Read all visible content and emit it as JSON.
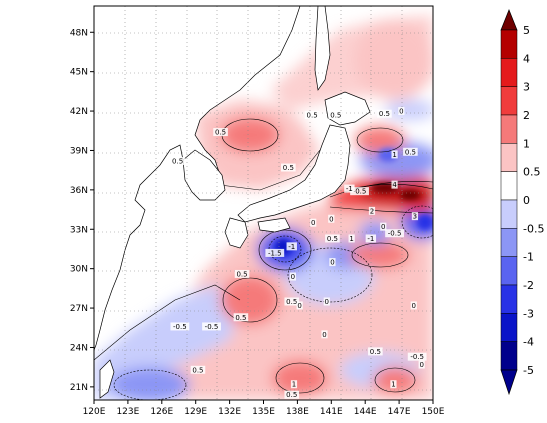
{
  "map": {
    "lon_ticks": [
      "120E",
      "123E",
      "126E",
      "129E",
      "132E",
      "135E",
      "138E",
      "141E",
      "144E",
      "147E",
      "150E"
    ],
    "lat_ticks": [
      "21N",
      "24N",
      "27N",
      "30N",
      "33N",
      "36N",
      "39N",
      "42N",
      "45N",
      "48N"
    ],
    "contour_labels": [
      {
        "text": "0.5",
        "lon": 131.2,
        "lat": 40.4
      },
      {
        "text": "0.5",
        "lon": 139.3,
        "lat": 41.7
      },
      {
        "text": "0.5",
        "lon": 145.7,
        "lat": 41.8
      },
      {
        "text": "0.5",
        "lon": 141.4,
        "lat": 41.7
      },
      {
        "text": "0",
        "lon": 147.2,
        "lat": 42.0
      },
      {
        "text": "0.5",
        "lon": 127.4,
        "lat": 38.2
      },
      {
        "text": "0.5",
        "lon": 137.2,
        "lat": 37.7
      },
      {
        "text": "1",
        "lon": 146.6,
        "lat": 38.7
      },
      {
        "text": "0.5",
        "lon": 148.0,
        "lat": 38.9
      },
      {
        "text": "-0.5",
        "lon": 143.5,
        "lat": 35.9
      },
      {
        "text": "-1",
        "lon": 142.6,
        "lat": 36.1
      },
      {
        "text": "4",
        "lon": 146.6,
        "lat": 36.4
      },
      {
        "text": "2",
        "lon": 144.6,
        "lat": 34.4
      },
      {
        "text": "3",
        "lon": 148.4,
        "lat": 34.0
      },
      {
        "text": "0",
        "lon": 139.4,
        "lat": 33.5
      },
      {
        "text": "0",
        "lon": 141.0,
        "lat": 33.8
      },
      {
        "text": "1",
        "lon": 142.8,
        "lat": 32.3
      },
      {
        "text": "0.5",
        "lon": 141.1,
        "lat": 32.3
      },
      {
        "text": "-1",
        "lon": 144.5,
        "lat": 32.3
      },
      {
        "text": "0",
        "lon": 145.6,
        "lat": 33.2
      },
      {
        "text": "-0.5",
        "lon": 146.6,
        "lat": 32.7
      },
      {
        "text": "-1",
        "lon": 137.5,
        "lat": 31.7
      },
      {
        "text": "-1.5",
        "lon": 136.0,
        "lat": 31.2
      },
      {
        "text": "0",
        "lon": 137.6,
        "lat": 29.4
      },
      {
        "text": "0.5",
        "lon": 133.1,
        "lat": 29.6
      },
      {
        "text": "0",
        "lon": 141.1,
        "lat": 30.5
      },
      {
        "text": "0.5",
        "lon": 137.5,
        "lat": 27.5
      },
      {
        "text": "0",
        "lon": 138.2,
        "lat": 27.2
      },
      {
        "text": "0",
        "lon": 140.6,
        "lat": 27.5
      },
      {
        "text": "0",
        "lon": 140.4,
        "lat": 25.0
      },
      {
        "text": "0",
        "lon": 148.3,
        "lat": 27.2
      },
      {
        "text": "0.5",
        "lon": 133.0,
        "lat": 26.3
      },
      {
        "text": "-0.5",
        "lon": 130.4,
        "lat": 25.6
      },
      {
        "text": "-0.5",
        "lon": 127.6,
        "lat": 25.6
      },
      {
        "text": "0.5",
        "lon": 144.9,
        "lat": 23.7
      },
      {
        "text": "-0.5",
        "lon": 148.6,
        "lat": 23.3
      },
      {
        "text": "0",
        "lon": 149.0,
        "lat": 22.7
      },
      {
        "text": "0.5",
        "lon": 129.2,
        "lat": 22.3
      },
      {
        "text": "1",
        "lon": 137.7,
        "lat": 21.2
      },
      {
        "text": "0.5",
        "lon": 137.5,
        "lat": 20.4
      },
      {
        "text": "1",
        "lon": 146.5,
        "lat": 21.2
      }
    ]
  },
  "colorbar": {
    "labels": [
      "5",
      "4",
      "3",
      "2",
      "1",
      "0.5",
      "0",
      "-0.5",
      "-1",
      "-2",
      "-3",
      "-4",
      "-5"
    ],
    "colors": [
      "#6e0000",
      "#b40000",
      "#e41a1c",
      "#f03c3c",
      "#f57a7a",
      "#fbc4c4",
      "#ffffff",
      "#c8cdfc",
      "#8c96f5",
      "#5a64f0",
      "#2832e6",
      "#0a14c8",
      "#00008c"
    ]
  }
}
